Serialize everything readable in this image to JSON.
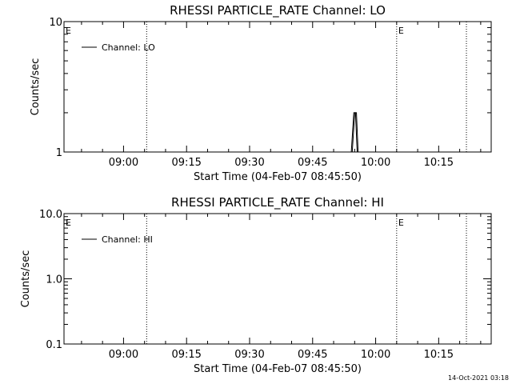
{
  "footer": {
    "timestamp": "14-Oct-2021 03:18"
  },
  "chart_data": [
    {
      "type": "line",
      "title": "RHESSI PARTICLE_RATE Channel: LO",
      "xlabel": "Start Time (04-Feb-07 08:45:50)",
      "ylabel": "Counts/sec",
      "y_scale": "log",
      "ylim": [
        1,
        10
      ],
      "y_ticks": [
        "1",
        "10"
      ],
      "x_ticks": [
        "09:00",
        "09:15",
        "09:30",
        "09:45",
        "10:00",
        "10:15"
      ],
      "x_tick_minutes": [
        540,
        555,
        570,
        585,
        600,
        615
      ],
      "xlim_minutes": [
        525.83,
        627.5
      ],
      "legend_label": "Channel: LO",
      "legend_position": "top-left",
      "eclipse_markers": [
        {
          "label": "E",
          "minute": 525.83
        },
        {
          "label": "E",
          "minute": 605.0
        }
      ],
      "dotted_lines_minutes": [
        545.5,
        605.0,
        621.6
      ],
      "series": [
        {
          "name": "Channel: LO",
          "x_minutes": [
            594.2,
            594.8,
            595.2,
            595.6
          ],
          "y": [
            1,
            2,
            2,
            1
          ]
        }
      ]
    },
    {
      "type": "line",
      "title": "RHESSI PARTICLE_RATE Channel: HI",
      "xlabel": "Start Time (04-Feb-07 08:45:50)",
      "ylabel": "Counts/sec",
      "y_scale": "log",
      "ylim": [
        0.1,
        10
      ],
      "y_ticks": [
        "0.1",
        "1.0",
        "10.0"
      ],
      "x_ticks": [
        "09:00",
        "09:15",
        "09:30",
        "09:45",
        "10:00",
        "10:15"
      ],
      "x_tick_minutes": [
        540,
        555,
        570,
        585,
        600,
        615
      ],
      "xlim_minutes": [
        525.83,
        627.5
      ],
      "legend_label": "Channel: HI",
      "legend_position": "top-left",
      "eclipse_markers": [
        {
          "label": "E",
          "minute": 525.83
        },
        {
          "label": "E",
          "minute": 605.0
        }
      ],
      "dotted_lines_minutes": [
        545.5,
        605.0,
        621.6
      ],
      "series": [
        {
          "name": "Channel: HI",
          "x_minutes": [],
          "y": []
        }
      ]
    }
  ]
}
